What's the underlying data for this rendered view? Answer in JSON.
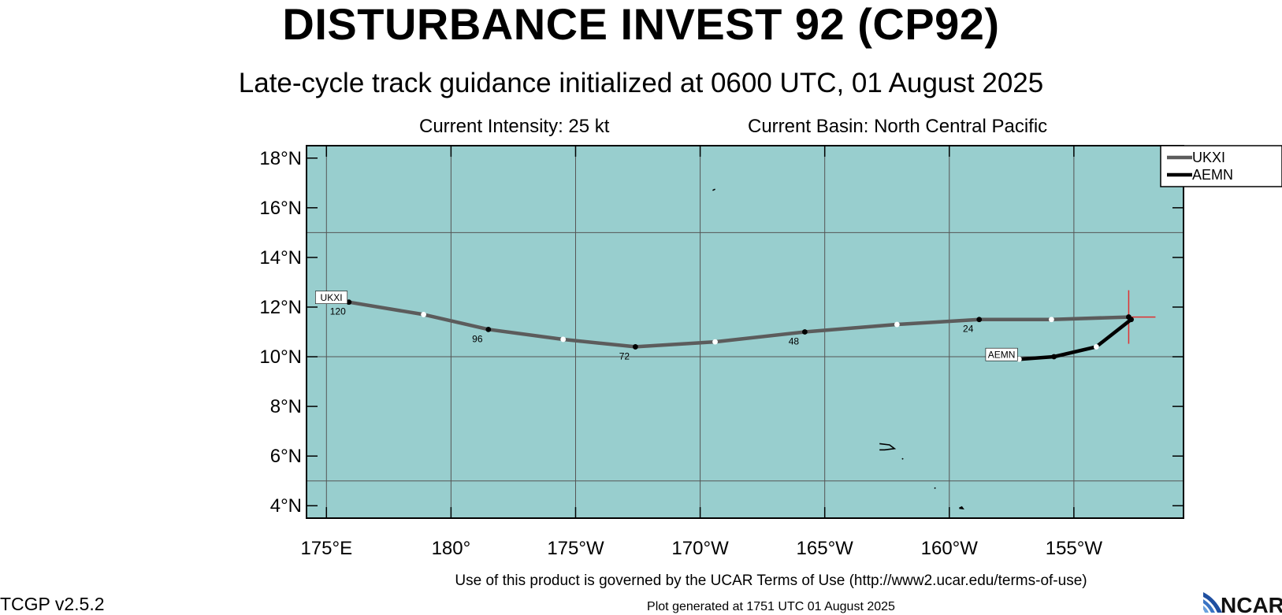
{
  "title": "DISTURBANCE INVEST 92 (CP92)",
  "subtitle": "Late-cycle track guidance initialized at 0600 UTC, 01 August 2025",
  "current_intensity": "Current Intensity: 25 kt",
  "current_basin": "Current Basin: North Central Pacific",
  "footer": {
    "version": "TCGP v2.5.2",
    "terms": "Use of this product is governed by the UCAR Terms of Use (http://www2.ucar.edu/terms-of-use)",
    "generated": "Plot generated at 1751 UTC   01 August 2025",
    "logo_text": "NCAR"
  },
  "map_data": {
    "type": "track-map",
    "xlim": [
      174.2,
      209.4
    ],
    "ylim": [
      3.5,
      18.5
    ],
    "x_ticks": [
      {
        "value": 175,
        "label": "175°E"
      },
      {
        "value": 180,
        "label": "180°"
      },
      {
        "value": 185,
        "label": "175°W"
      },
      {
        "value": 190,
        "label": "170°W"
      },
      {
        "value": 195,
        "label": "165°W"
      },
      {
        "value": 200,
        "label": "160°W"
      },
      {
        "value": 205,
        "label": "155°W"
      }
    ],
    "y_ticks": [
      {
        "value": 4,
        "label": "4°N"
      },
      {
        "value": 6,
        "label": "6°N"
      },
      {
        "value": 8,
        "label": "8°N"
      },
      {
        "value": 10,
        "label": "10°N"
      },
      {
        "value": 12,
        "label": "12°N"
      },
      {
        "value": 14,
        "label": "14°N"
      },
      {
        "value": 16,
        "label": "16°N"
      },
      {
        "value": 18,
        "label": "18°N"
      }
    ],
    "grid_lon": [
      175,
      180,
      185,
      190,
      195,
      200,
      205
    ],
    "grid_lat": [
      5,
      10,
      15
    ],
    "ocean_color": "#98cece",
    "current_position": {
      "lon": 207.2,
      "lat": 11.6,
      "marker_color": "#e03030"
    },
    "series": [
      {
        "name": "UKXI",
        "color": "#5c5c5c",
        "points": [
          {
            "lon": 207.2,
            "lat": 11.6,
            "tau": 0
          },
          {
            "lon": 204.1,
            "lat": 11.5,
            "tau": 12
          },
          {
            "lon": 201.2,
            "lat": 11.5,
            "tau": 24
          },
          {
            "lon": 197.9,
            "lat": 11.3,
            "tau": 36
          },
          {
            "lon": 194.2,
            "lat": 11.0,
            "tau": 48
          },
          {
            "lon": 190.6,
            "lat": 10.6,
            "tau": 60
          },
          {
            "lon": 187.4,
            "lat": 10.4,
            "tau": 72
          },
          {
            "lon": 184.5,
            "lat": 10.7,
            "tau": 84
          },
          {
            "lon": 181.5,
            "lat": 11.1,
            "tau": 96
          },
          {
            "lon": 178.9,
            "lat": 11.7,
            "tau": 108
          },
          {
            "lon": 175.9,
            "lat": 12.2,
            "tau": 120
          }
        ],
        "tau_labels": [
          {
            "tau": 24,
            "text": "24"
          },
          {
            "tau": 48,
            "text": "48"
          },
          {
            "tau": 72,
            "text": "72"
          },
          {
            "tau": 96,
            "text": "96"
          },
          {
            "tau": 120,
            "text": "120"
          }
        ],
        "end_label": "UKXI"
      },
      {
        "name": "AEMN",
        "color": "#000000",
        "points": [
          {
            "lon": 207.3,
            "lat": 11.5,
            "tau": 0
          },
          {
            "lon": 205.9,
            "lat": 10.4,
            "tau": 12
          },
          {
            "lon": 204.2,
            "lat": 10.0,
            "tau": 24
          },
          {
            "lon": 202.8,
            "lat": 9.9,
            "tau": 30
          }
        ],
        "tau_labels": [],
        "end_label": "AEMN"
      }
    ],
    "legend_position": "top-right",
    "land_outlines": [
      {
        "name": "islet-1",
        "points": [
          [
            190.5,
            16.7
          ],
          [
            190.6,
            16.75
          ]
        ]
      },
      {
        "name": "islet-2",
        "points": [
          [
            197.2,
            6.5
          ],
          [
            197.6,
            6.45
          ],
          [
            197.8,
            6.3
          ],
          [
            197.4,
            6.25
          ],
          [
            197.2,
            6.25
          ]
        ]
      },
      {
        "name": "islet-3",
        "points": [
          [
            198.1,
            5.9
          ],
          [
            198.15,
            5.88
          ]
        ]
      },
      {
        "name": "islet-4",
        "points": [
          [
            199.4,
            4.72
          ],
          [
            199.45,
            4.7
          ]
        ]
      },
      {
        "name": "islet-5",
        "points": [
          [
            200.4,
            3.9
          ],
          [
            200.55,
            3.88
          ],
          [
            200.5,
            3.95
          ],
          [
            200.4,
            3.9
          ]
        ]
      }
    ]
  }
}
